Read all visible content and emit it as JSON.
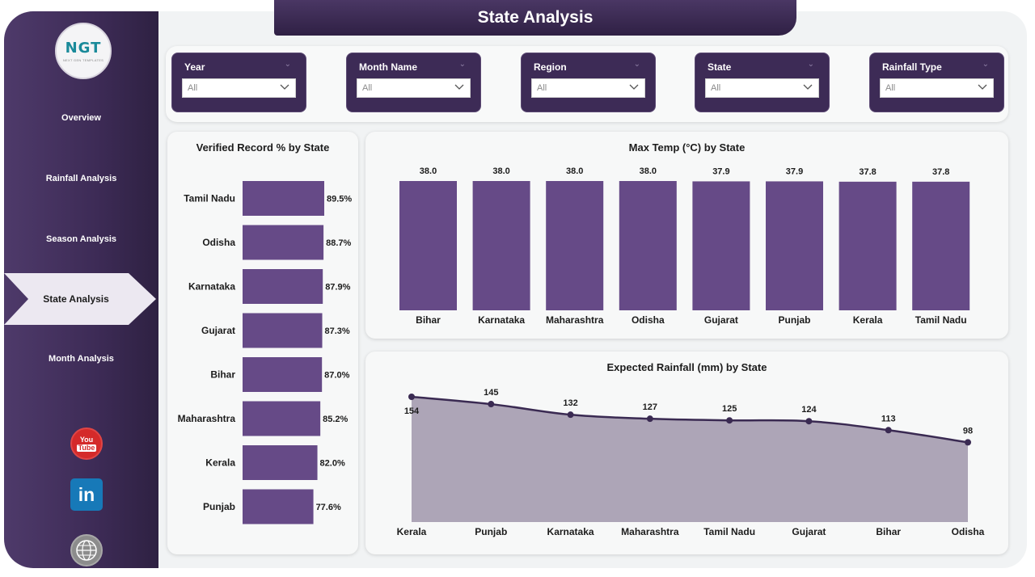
{
  "logo": {
    "text": "NGT",
    "subtitle": "NEXT GEN TEMPLATES"
  },
  "nav": [
    {
      "label": "Overview",
      "active": false
    },
    {
      "label": "Rainfall Analysis",
      "active": false
    },
    {
      "label": "Season Analysis",
      "active": false
    },
    {
      "label": "State Analysis",
      "active": true
    },
    {
      "label": "Month Analysis",
      "active": false
    }
  ],
  "social": {
    "youtube_line1": "You",
    "youtube_line2": "Tube",
    "linkedin": "in",
    "web_icon": "globe-icon"
  },
  "page_title": "State Analysis",
  "filters": [
    {
      "label": "Year",
      "value": "All"
    },
    {
      "label": "Month Name",
      "value": "All"
    },
    {
      "label": "Region",
      "value": "All"
    },
    {
      "label": "State",
      "value": "All"
    },
    {
      "label": "Rainfall Type",
      "value": "All"
    }
  ],
  "colors": {
    "accent": "#3d2b56",
    "bar": "#664a87",
    "area": "#ada5b7",
    "line": "#3a2a52"
  },
  "chart_data": [
    {
      "type": "bar",
      "orientation": "horizontal",
      "title": "Verified Record % by State",
      "categories": [
        "Tamil Nadu",
        "Odisha",
        "Karnataka",
        "Gujarat",
        "Bihar",
        "Maharashtra",
        "Kerala",
        "Punjab"
      ],
      "values": [
        89.5,
        88.7,
        87.9,
        87.3,
        87.0,
        85.2,
        82.0,
        77.6
      ],
      "labels": [
        "89.5%",
        "88.7%",
        "87.9%",
        "87.3%",
        "87.0%",
        "85.2%",
        "82.0%",
        "77.6%"
      ],
      "xlim": [
        0,
        89.5
      ]
    },
    {
      "type": "bar",
      "title": "Max Temp (°C) by State",
      "categories": [
        "Bihar",
        "Karnataka",
        "Maharashtra",
        "Odisha",
        "Gujarat",
        "Punjab",
        "Kerala",
        "Tamil Nadu"
      ],
      "values": [
        38.0,
        38.0,
        38.0,
        38.0,
        37.9,
        37.9,
        37.8,
        37.8
      ],
      "labels": [
        "38.0",
        "38.0",
        "38.0",
        "38.0",
        "37.9",
        "37.9",
        "37.8",
        "37.8"
      ],
      "ylim": [
        0,
        38.0
      ]
    },
    {
      "type": "area",
      "title": "Expected Rainfall (mm) by State",
      "categories": [
        "Kerala",
        "Punjab",
        "Karnataka",
        "Maharashtra",
        "Tamil Nadu",
        "Gujarat",
        "Bihar",
        "Odisha"
      ],
      "values": [
        154,
        145,
        132,
        127,
        125,
        124,
        113,
        98
      ],
      "labels": [
        "154",
        "145",
        "132",
        "127",
        "125",
        "124",
        "113",
        "98"
      ],
      "ylim": [
        0,
        154
      ]
    }
  ]
}
